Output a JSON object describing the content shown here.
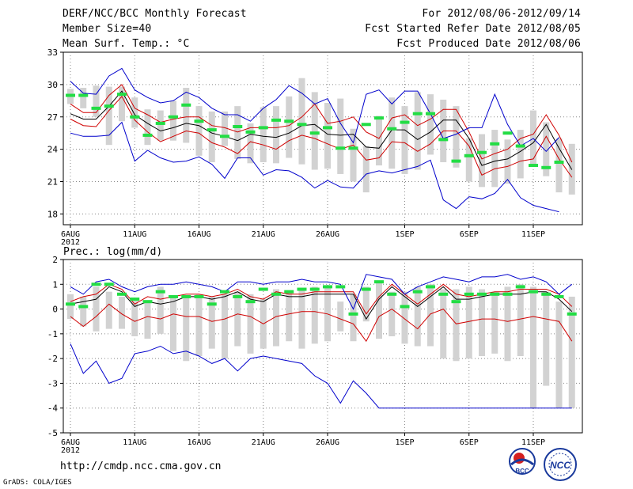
{
  "header": {
    "title": "DERF/NCC/BCC Monthly Forecast",
    "member_size": "Member Size=40",
    "variable": "Mean Surf. Temp.: °C",
    "period": "For 2012/08/06-2012/09/14",
    "start_date": "Fcst Started Refer Date 2012/08/05",
    "produced_date": "Fcst Produced Date 2012/08/06"
  },
  "footer": {
    "url": "http://cmdp.ncc.cma.gov.cn",
    "credit": "GrADS: COLA/IGES",
    "logo_bcc": "BCC",
    "logo_ncc": "NCC"
  },
  "colors": {
    "ensemble_bar": "#d2d2d2",
    "mean_line": "#000000",
    "spread_line": "#d00000",
    "extreme_line": "#0000cc",
    "marker": "#22dd44",
    "grid": "#888888"
  },
  "chart_data": [
    {
      "type": "line",
      "title": "Mean Surf. Temp.: °C",
      "x_ticks": [
        "6AUG",
        "11AUG",
        "16AUG",
        "21AUG",
        "26AUG",
        "1SEP",
        "6SEP",
        "11SEP"
      ],
      "x_tick_days": [
        0,
        5,
        10,
        15,
        20,
        26,
        31,
        36
      ],
      "year_label": "2012",
      "y_ticks": [
        18,
        21,
        24,
        27,
        30,
        33
      ],
      "ylim": [
        17,
        33
      ],
      "n_days": 40,
      "series": [
        {
          "name": "ensemble mean",
          "color": "black",
          "values": [
            27.3,
            26.8,
            26.8,
            28.0,
            29.4,
            27.2,
            26.4,
            25.7,
            26.0,
            26.4,
            26.2,
            25.5,
            25.2,
            24.8,
            25.4,
            25.2,
            25.1,
            25.5,
            26.2,
            26.3,
            25.4,
            25.3,
            25.4,
            24.2,
            24.1,
            25.8,
            25.8,
            24.9,
            25.6,
            26.7,
            26.7,
            25.0,
            22.5,
            22.9,
            23.1,
            23.8,
            24.6,
            26.3,
            24.1,
            22.1,
            22.5,
            21.8,
            21.9
          ]
        },
        {
          "name": "upper spread",
          "color": "red",
          "values": [
            28.2,
            27.4,
            27.4,
            29.0,
            30.0,
            27.8,
            27.2,
            26.5,
            26.8,
            27.0,
            27.0,
            26.2,
            26.0,
            25.6,
            26.0,
            26.0,
            26.0,
            26.2,
            27.0,
            28.2,
            26.4,
            26.6,
            27.0,
            25.6,
            25.0,
            26.9,
            27.2,
            26.2,
            26.8,
            27.7,
            27.7,
            25.6,
            23.1,
            23.6,
            24.0,
            25.0,
            25.4,
            27.2,
            25.3,
            22.8,
            23.0,
            22.4,
            22.6
          ]
        },
        {
          "name": "lower spread",
          "color": "red",
          "values": [
            26.8,
            26.2,
            26.1,
            27.6,
            28.9,
            26.7,
            25.6,
            24.7,
            25.2,
            25.7,
            25.5,
            24.6,
            24.2,
            23.6,
            24.7,
            24.4,
            24.0,
            24.8,
            25.3,
            25.0,
            24.5,
            24.0,
            24.4,
            23.0,
            23.2,
            24.7,
            24.6,
            23.8,
            24.5,
            25.7,
            25.7,
            24.3,
            21.6,
            22.2,
            22.4,
            22.9,
            23.1,
            25.2,
            23.1,
            21.4,
            21.8,
            21.2,
            21.2
          ]
        },
        {
          "name": "ensemble max",
          "color": "blue",
          "values": [
            30.3,
            29.2,
            29.1,
            30.8,
            31.5,
            29.5,
            28.8,
            28.3,
            28.5,
            29.3,
            28.8,
            27.8,
            27.2,
            27.2,
            26.6,
            27.8,
            28.6,
            29.9,
            29.2,
            28.2,
            28.7,
            26.4,
            24.6,
            29.1,
            29.5,
            28.2,
            29.4,
            29.4,
            27.3,
            25.0,
            25.4,
            26.0,
            26.0,
            29.1,
            26.3,
            24.3,
            25.0,
            23.8,
            25.1
          ]
        },
        {
          "name": "ensemble min",
          "color": "blue",
          "values": [
            25.5,
            25.2,
            25.2,
            25.3,
            26.5,
            22.9,
            23.9,
            23.2,
            22.8,
            22.9,
            23.3,
            22.6,
            21.3,
            23.2,
            23.2,
            21.6,
            22.1,
            22.0,
            21.4,
            20.4,
            21.1,
            20.5,
            20.4,
            21.7,
            22.0,
            21.8,
            22.1,
            22.4,
            23.0,
            19.3,
            18.5,
            19.6,
            19.4,
            19.9,
            21.2,
            19.5,
            18.8,
            18.5,
            18.2
          ]
        }
      ],
      "markers": [
        29.0,
        29.0,
        27.8,
        28.0,
        29.1,
        27.0,
        25.3,
        26.4,
        27.0,
        28.1,
        26.6,
        25.8,
        25.2,
        26.1,
        25.6,
        26.0,
        26.7,
        26.6,
        26.3,
        25.5,
        26.0,
        24.1,
        24.1,
        26.3,
        26.9,
        25.9,
        26.5,
        27.3,
        27.3,
        24.9,
        22.9,
        23.4,
        23.7,
        24.5,
        25.5,
        24.3,
        22.5,
        22.3,
        22.8
      ],
      "ens_bars": [
        [
          28.2,
          29.6
        ],
        [
          27.8,
          29.7
        ],
        [
          27.0,
          29.9
        ],
        [
          24.4,
          29.8
        ],
        [
          26.6,
          29.8
        ],
        [
          26.0,
          28.8
        ],
        [
          24.4,
          27.7
        ],
        [
          24.8,
          27.6
        ],
        [
          24.8,
          28.5
        ],
        [
          24.6,
          29.7
        ],
        [
          23.4,
          28.0
        ],
        [
          22.8,
          27.5
        ],
        [
          24.3,
          27.5
        ],
        [
          23.1,
          28.0
        ],
        [
          22.7,
          26.4
        ],
        [
          22.8,
          27.9
        ],
        [
          22.7,
          28.0
        ],
        [
          23.2,
          28.9
        ],
        [
          22.6,
          30.6
        ],
        [
          22.1,
          29.3
        ],
        [
          22.2,
          28.3
        ],
        [
          21.7,
          28.7
        ],
        [
          21.0,
          25.9
        ],
        [
          20.0,
          24.3
        ],
        [
          22.5,
          27.1
        ],
        [
          22.2,
          28.8
        ],
        [
          21.7,
          28.0
        ],
        [
          22.1,
          29.3
        ],
        [
          23.5,
          29.1
        ],
        [
          22.8,
          28.6
        ],
        [
          22.3,
          28.0
        ],
        [
          21.0,
          25.0
        ],
        [
          20.5,
          25.4
        ],
        [
          20.5,
          25.8
        ],
        [
          20.8,
          24.9
        ],
        [
          21.3,
          25.8
        ],
        [
          22.4,
          27.6
        ],
        [
          21.5,
          26.5
        ],
        [
          20.0,
          25.0
        ],
        [
          19.8,
          24.5
        ],
        [
          19.5,
          24.8
        ],
        [
          19.8,
          25.5
        ]
      ]
    },
    {
      "type": "line",
      "title": "Prec.: log(mm/d)",
      "x_ticks": [
        "6AUG",
        "11AUG",
        "16AUG",
        "21AUG",
        "26AUG",
        "1SEP",
        "6SEP",
        "11SEP"
      ],
      "x_tick_days": [
        0,
        5,
        10,
        15,
        20,
        26,
        31,
        36
      ],
      "year_label": "2012",
      "y_ticks": [
        -5,
        -4,
        -3,
        -2,
        -1,
        0,
        1,
        2
      ],
      "ylim": [
        -5,
        2
      ],
      "n_days": 40,
      "series": [
        {
          "name": "ensemble mean",
          "color": "black",
          "values": [
            0.2,
            0.3,
            0.4,
            0.9,
            0.7,
            0.1,
            0.3,
            0.2,
            0.3,
            0.5,
            0.5,
            0.4,
            0.5,
            0.7,
            0.4,
            0.3,
            0.6,
            0.5,
            0.5,
            0.6,
            0.6,
            0.6,
            0.6,
            -0.4,
            0.4,
            0.9,
            0.5,
            0.1,
            0.5,
            0.9,
            0.4,
            0.4,
            0.5,
            0.6,
            0.6,
            0.6,
            0.7,
            0.7,
            0.4,
            -0.1,
            0.2,
            0.4,
            0.4
          ]
        },
        {
          "name": "upper spread",
          "color": "red",
          "values": [
            0.3,
            0.5,
            0.6,
            1.0,
            0.8,
            0.2,
            0.5,
            0.4,
            0.5,
            0.6,
            0.6,
            0.5,
            0.6,
            0.8,
            0.5,
            0.4,
            0.7,
            0.6,
            0.6,
            0.7,
            0.7,
            0.7,
            0.7,
            -0.2,
            0.5,
            1.0,
            0.6,
            0.2,
            0.6,
            1.0,
            0.6,
            0.5,
            0.6,
            0.7,
            0.7,
            0.8,
            0.8,
            0.8,
            0.6,
            0.1,
            0.3,
            0.5,
            0.5
          ]
        },
        {
          "name": "lower spread",
          "color": "red",
          "values": [
            -0.3,
            -0.7,
            -0.3,
            0.2,
            -0.2,
            -0.5,
            -0.3,
            -0.4,
            -0.2,
            -0.3,
            -0.3,
            -0.5,
            -0.4,
            -0.2,
            -0.3,
            -0.6,
            -0.3,
            -0.2,
            -0.1,
            -0.1,
            -0.2,
            -0.4,
            -0.6,
            -1.3,
            -0.3,
            0.0,
            -0.4,
            -0.8,
            -0.2,
            0.0,
            -0.6,
            -0.5,
            -0.4,
            -0.4,
            -0.5,
            -0.4,
            -0.3,
            -0.4,
            -0.5,
            -1.3,
            -0.9,
            -0.7,
            -0.8
          ]
        },
        {
          "name": "ensemble max",
          "color": "blue",
          "values": [
            0.9,
            0.6,
            1.1,
            1.2,
            0.9,
            0.7,
            0.9,
            1.0,
            1.0,
            1.1,
            1.0,
            0.9,
            0.7,
            1.1,
            1.1,
            1.0,
            1.1,
            1.1,
            1.2,
            1.1,
            1.1,
            1.0,
            0.0,
            1.4,
            1.3,
            1.2,
            0.6,
            0.9,
            1.1,
            1.3,
            1.2,
            1.1,
            1.3,
            1.3,
            1.4,
            1.2,
            1.3,
            1.1,
            0.6,
            1.0,
            1.1,
            1.0
          ]
        },
        {
          "name": "ensemble min",
          "color": "blue",
          "values": [
            -1.4,
            -2.6,
            -2.1,
            -3.0,
            -2.8,
            -1.8,
            -1.7,
            -1.5,
            -1.8,
            -1.7,
            -1.9,
            -2.2,
            -2.0,
            -2.5,
            -2.0,
            -1.9,
            -2.0,
            -2.1,
            -2.2,
            -2.7,
            -3.0,
            -3.8,
            -2.9,
            -3.4,
            -4.0,
            -4.0,
            -4.0,
            -4.0,
            -4.0,
            -4.0,
            -4.0,
            -4.0,
            -4.0,
            -4.0,
            -4.0,
            -4.0,
            -4.0,
            -4.0,
            -4.0,
            -4.0,
            -4.0
          ]
        }
      ],
      "markers": [
        0.2,
        0.1,
        1.0,
        1.0,
        0.6,
        0.4,
        0.3,
        0.7,
        0.5,
        0.5,
        0.5,
        0.2,
        0.7,
        0.5,
        0.3,
        0.8,
        0.6,
        0.7,
        0.8,
        0.8,
        0.9,
        0.9,
        -0.2,
        0.8,
        1.1,
        0.6,
        0.1,
        0.7,
        0.9,
        0.6,
        0.3,
        0.6,
        0.6,
        0.6,
        0.6,
        0.9,
        0.7,
        0.6,
        0.5,
        -0.2,
        0.3,
        0.4,
        0.5
      ],
      "ens_bars": [
        [
          -0.4,
          0.6
        ],
        [
          -0.7,
          0.5
        ],
        [
          -0.9,
          0.9
        ],
        [
          -0.8,
          0.7
        ],
        [
          -0.8,
          0.5
        ],
        [
          -1.1,
          0.4
        ],
        [
          -1.2,
          0.3
        ],
        [
          -1.0,
          0.9
        ],
        [
          -1.7,
          0.5
        ],
        [
          -2.1,
          0.5
        ],
        [
          -1.9,
          0.6
        ],
        [
          -1.6,
          0.5
        ],
        [
          -2.0,
          0.6
        ],
        [
          -1.5,
          0.7
        ],
        [
          -1.8,
          0.6
        ],
        [
          -1.6,
          0.4
        ],
        [
          -1.5,
          0.8
        ],
        [
          -1.3,
          0.7
        ],
        [
          -1.6,
          0.8
        ],
        [
          -1.4,
          0.9
        ],
        [
          -1.3,
          0.9
        ],
        [
          -0.9,
          0.3
        ],
        [
          -1.3,
          0.6
        ],
        [
          -0.5,
          0.9
        ],
        [
          -1.2,
          1.1
        ],
        [
          -1.1,
          0.7
        ],
        [
          -1.4,
          0.7
        ],
        [
          -1.5,
          0.9
        ],
        [
          -1.5,
          1.0
        ],
        [
          -2.0,
          0.8
        ],
        [
          -2.1,
          0.8
        ],
        [
          -2.0,
          0.9
        ],
        [
          -1.9,
          0.8
        ],
        [
          -1.8,
          0.7
        ],
        [
          -2.1,
          0.9
        ],
        [
          -1.9,
          1.0
        ],
        [
          -4.0,
          0.9
        ],
        [
          -3.1,
          0.7
        ],
        [
          -4.0,
          0.3
        ],
        [
          -4.0,
          0.5
        ],
        [
          -2.8,
          0.4
        ],
        [
          -2.7,
          0.8
        ],
        [
          -2.7,
          0.5
        ]
      ]
    }
  ]
}
